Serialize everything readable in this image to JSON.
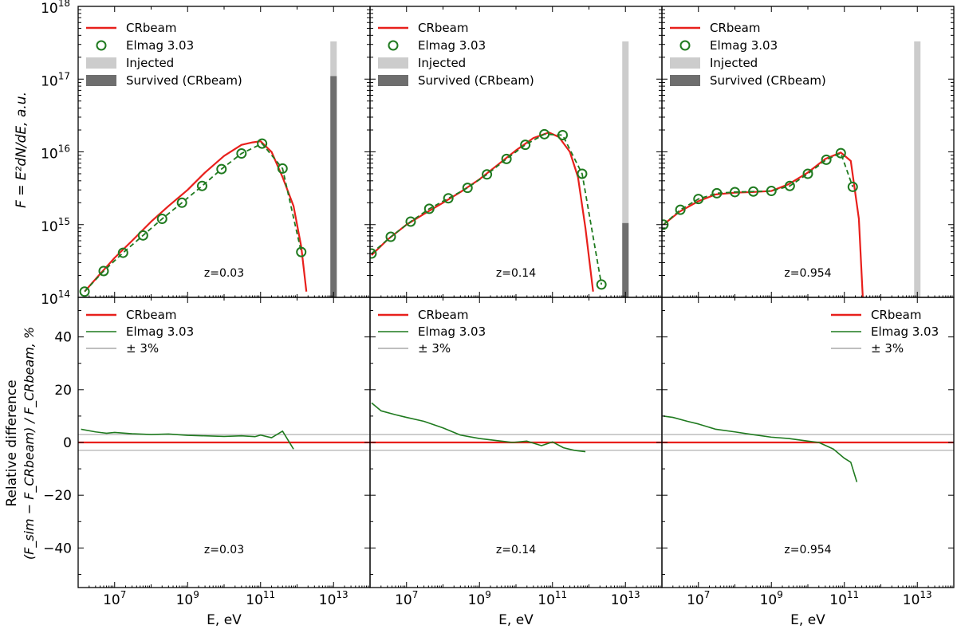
{
  "colors": {
    "crbeam": "#e8201c",
    "elmag": "#1f7a1f",
    "injected": "#cccccc",
    "survived": "#6e6e6e",
    "band": "#a8a8a8"
  },
  "labels": {
    "x_label": "E, eV",
    "top_y_label": "F = E²dN/dE,  a.u.",
    "bottom_y_label_line1": "Relative difference",
    "bottom_y_label_line2": "(F_sim − F_CRbeam) / F_CRbeam, %",
    "x_ticks": [
      "10^7",
      "10^9",
      "10^11",
      "10^13"
    ],
    "top_y_ticks": [
      "10^14",
      "10^15",
      "10^16",
      "10^17",
      "10^18"
    ],
    "bottom_y_ticks": [
      "−40",
      "−20",
      "0",
      "20",
      "40"
    ]
  },
  "legend_top": [
    "CRbeam",
    "Elmag 3.03",
    "Injected",
    "Survived (CRbeam)"
  ],
  "legend_bottom": [
    "CRbeam",
    "Elmag 3.03",
    "± 3%"
  ],
  "chart_data": [
    {
      "type": "line",
      "panel": "top-left",
      "annotation": "z=0.03",
      "xscale": "log",
      "yscale": "log",
      "xlim": [
        1000000.0,
        100000000000000.0
      ],
      "ylim": [
        100000000000000.0,
        1e+18
      ],
      "series": [
        {
          "name": "CRbeam",
          "x": [
            1500000.0,
            4000000.0,
            10000000.0,
            30000000.0,
            100000000.0,
            300000000.0,
            1000000000.0,
            3000000000.0,
            10000000000.0,
            30000000000.0,
            60000000000.0,
            100000000000.0,
            200000000000.0,
            400000000000.0,
            800000000000.0,
            1300000000000.0,
            1800000000000.0
          ],
          "y": [
            120000000000000.0,
            210000000000000.0,
            350000000000000.0,
            600000000000000.0,
            1100000000000000.0,
            1800000000000000.0,
            3000000000000000.0,
            5200000000000000.0,
            8800000000000000.0,
            1.25e+16,
            1.35e+16,
            1.4e+16,
            1e+16,
            4500000000000000.0,
            1800000000000000.0,
            500000000000000.0,
            120000000000000.0
          ]
        },
        {
          "name": "Elmag 3.03",
          "x": [
            1500000.0,
            5000000.0,
            17000000.0,
            60000000.0,
            200000000.0,
            700000000.0,
            2500000000.0,
            8500000000.0,
            30000000000.0,
            110000000000.0,
            400000000000.0,
            1300000000000.0
          ],
          "y": [
            120000000000000.0,
            230000000000000.0,
            410000000000000.0,
            710000000000000.0,
            1200000000000000.0,
            2000000000000000.0,
            3400000000000000.0,
            5800000000000000.0,
            9500000000000000.0,
            1.3e+16,
            5900000000000000.0,
            420000000000000.0
          ]
        },
        {
          "name": "Injected",
          "x": [
            10000000000000.0
          ],
          "y": [
            3.3e+17
          ]
        },
        {
          "name": "Survived (CRbeam)",
          "x": [
            10000000000000.0
          ],
          "y": [
            1.1e+17
          ]
        }
      ]
    },
    {
      "type": "line",
      "panel": "top-middle",
      "annotation": "z=0.14",
      "xscale": "log",
      "yscale": "log",
      "xlim": [
        1000000.0,
        100000000000000.0
      ],
      "ylim": [
        100000000000000.0,
        1e+18
      ],
      "series": [
        {
          "name": "CRbeam",
          "x": [
            1100000.0,
            3000000.0,
            10000000.0,
            30000000.0,
            100000000.0,
            300000000.0,
            1000000000.0,
            3000000000.0,
            10000000000.0,
            30000000000.0,
            80000000000.0,
            150000000000.0,
            300000000000.0,
            500000000000.0,
            800000000000.0,
            1300000000000.0
          ],
          "y": [
            380000000000000.0,
            620000000000000.0,
            1000000000000000.0,
            1400000000000000.0,
            2000000000000000.0,
            2800000000000000.0,
            4200000000000000.0,
            6500000000000000.0,
            1.05e+16,
            1.55e+16,
            1.85e+16,
            1.6e+16,
            1e+16,
            4500000000000000.0,
            900000000000000.0,
            120000000000000.0
          ]
        },
        {
          "name": "Elmag 3.03",
          "x": [
            1100000.0,
            3700000.0,
            13000000.0,
            42000000.0,
            140000000.0,
            470000000.0,
            1600000000.0,
            5500000000.0,
            18000000000.0,
            60000000000.0,
            190000000000.0,
            650000000000.0,
            2200000000000.0
          ],
          "y": [
            400000000000000.0,
            680000000000000.0,
            1100000000000000.0,
            1650000000000000.0,
            2300000000000000.0,
            3200000000000000.0,
            4900000000000000.0,
            8000000000000000.0,
            1.25e+16,
            1.75e+16,
            1.7e+16,
            5000000000000000.0,
            150000000000000.0
          ]
        },
        {
          "name": "Injected",
          "x": [
            10000000000000.0
          ],
          "y": [
            3.3e+17
          ]
        },
        {
          "name": "Survived (CRbeam)",
          "x": [
            10000000000000.0
          ],
          "y": [
            1050000000000000.0
          ]
        }
      ]
    },
    {
      "type": "line",
      "panel": "top-right",
      "annotation": "z=0.954",
      "xscale": "log",
      "yscale": "log",
      "xlim": [
        1000000.0,
        100000000000000.0
      ],
      "ylim": [
        100000000000000.0,
        1e+18
      ],
      "series": [
        {
          "name": "CRbeam",
          "x": [
            1100000.0,
            3000000.0,
            10000000.0,
            30000000.0,
            100000000.0,
            300000000.0,
            1000000000.0,
            3000000000.0,
            10000000000.0,
            30000000000.0,
            80000000000.0,
            150000000000.0,
            250000000000.0,
            320000000000.0
          ],
          "y": [
            1000000000000000.0,
            1500000000000000.0,
            2100000000000000.0,
            2600000000000000.0,
            2750000000000000.0,
            2800000000000000.0,
            2900000000000000.0,
            3600000000000000.0,
            5200000000000000.0,
            8000000000000000.0,
            9800000000000000.0,
            7500000000000000.0,
            1200000000000000.0,
            100000000000000.0
          ]
        },
        {
          "name": "Elmag 3.03",
          "x": [
            1100000.0,
            3200000.0,
            10000000.0,
            32000000.0,
            100000000.0,
            320000000.0,
            1000000000.0,
            3200000000.0,
            10000000000.0,
            32000000000.0,
            80000000000.0,
            170000000000.0
          ],
          "y": [
            1000000000000000.0,
            1600000000000000.0,
            2250000000000000.0,
            2700000000000000.0,
            2800000000000000.0,
            2850000000000000.0,
            2900000000000000.0,
            3400000000000000.0,
            5000000000000000.0,
            7800000000000000.0,
            9600000000000000.0,
            3300000000000000.0
          ]
        },
        {
          "name": "Injected",
          "x": [
            10000000000000.0
          ],
          "y": [
            3.3e+17
          ]
        }
      ]
    },
    {
      "type": "line",
      "panel": "bottom-left",
      "annotation": "z=0.03",
      "xscale": "log",
      "yscale": "linear",
      "xlim": [
        1000000.0,
        100000000000000.0
      ],
      "ylim": [
        -55,
        55
      ],
      "series": [
        {
          "name": "CRbeam",
          "x": [
            1000000.0,
            100000000000000.0
          ],
          "y": [
            0,
            0
          ]
        },
        {
          "name": "Elmag 3.03",
          "x": [
            1200000.0,
            3000000.0,
            6000000.0,
            10000000.0,
            30000000.0,
            100000000.0,
            300000000.0,
            1000000000.0,
            3000000000.0,
            10000000000.0,
            30000000000.0,
            70000000000.0,
            100000000000.0,
            200000000000.0,
            400000000000.0,
            800000000000.0
          ],
          "y": [
            5,
            4,
            3.5,
            3.8,
            3.3,
            3.0,
            3.2,
            2.7,
            2.5,
            2.3,
            2.5,
            2.2,
            2.8,
            1.8,
            4.3,
            -2.5
          ]
        },
        {
          "name": "± 3%",
          "x": [
            1000000.0,
            100000000000000.0
          ],
          "y": [
            3,
            3
          ]
        },
        {
          "name": "± 3% lower",
          "x": [
            1000000.0,
            100000000000000.0
          ],
          "y": [
            -3,
            -3
          ]
        }
      ]
    },
    {
      "type": "line",
      "panel": "bottom-middle",
      "annotation": "z=0.14",
      "xscale": "log",
      "yscale": "linear",
      "xlim": [
        1000000.0,
        100000000000000.0
      ],
      "ylim": [
        -55,
        55
      ],
      "series": [
        {
          "name": "CRbeam",
          "x": [
            1000000.0,
            100000000000000.0
          ],
          "y": [
            0,
            0
          ]
        },
        {
          "name": "Elmag 3.03",
          "x": [
            1100000.0,
            2000000.0,
            5000000.0,
            10000000.0,
            30000000.0,
            100000000.0,
            300000000.0,
            1000000000.0,
            3000000000.0,
            8000000000.0,
            20000000000.0,
            50000000000.0,
            100000000000.0,
            200000000000.0,
            400000000000.0,
            800000000000.0
          ],
          "y": [
            15,
            12,
            10.5,
            9.5,
            8,
            5.5,
            2.8,
            1.5,
            0.7,
            0,
            0.5,
            -1.2,
            0.2,
            -2,
            -3,
            -3.5
          ]
        },
        {
          "name": "± 3%",
          "x": [
            1000000.0,
            100000000000000.0
          ],
          "y": [
            3,
            3
          ]
        },
        {
          "name": "± 3% lower",
          "x": [
            1000000.0,
            100000000000000.0
          ],
          "y": [
            -3,
            -3
          ]
        }
      ]
    },
    {
      "type": "line",
      "panel": "bottom-right",
      "annotation": "z=0.954",
      "xscale": "log",
      "yscale": "linear",
      "xlim": [
        1000000.0,
        100000000000000.0
      ],
      "ylim": [
        -55,
        55
      ],
      "series": [
        {
          "name": "CRbeam",
          "x": [
            1000000.0,
            100000000000000.0
          ],
          "y": [
            0,
            0
          ]
        },
        {
          "name": "Elmag 3.03",
          "x": [
            1100000.0,
            2000000.0,
            5000000.0,
            10000000.0,
            30000000.0,
            100000000.0,
            300000000.0,
            1000000000.0,
            3000000000.0,
            10000000000.0,
            20000000000.0,
            50000000000.0,
            100000000000.0,
            150000000000.0,
            220000000000.0
          ],
          "y": [
            10,
            9.5,
            8,
            7,
            5,
            4,
            3,
            2,
            1.5,
            0.5,
            0,
            -2.5,
            -6,
            -7.5,
            -15
          ]
        },
        {
          "name": "± 3%",
          "x": [
            1000000.0,
            100000000000000.0
          ],
          "y": [
            3,
            3
          ]
        },
        {
          "name": "± 3% lower",
          "x": [
            1000000.0,
            100000000000000.0
          ],
          "y": [
            -3,
            -3
          ]
        }
      ]
    }
  ]
}
